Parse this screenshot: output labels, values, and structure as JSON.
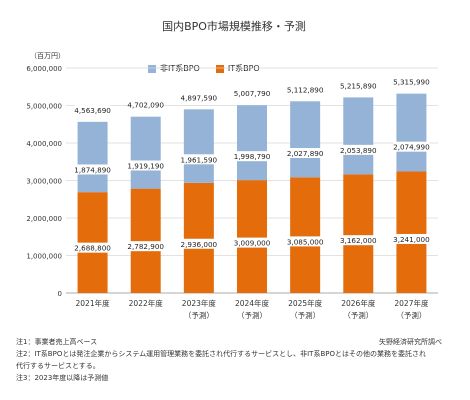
{
  "title": "国内BPO市場規模推移・予測",
  "y_unit": "（百万円）",
  "notes": [
    "注1：事業者売上高ベース",
    "注2：IT系BPOとは発注企業からシステム運用管理業務を委託され代行するサービスとし、非IT系BPOとはその他の業務を委託され",
    "代行するサービスとする。",
    "注3：2023年度以降は予測値"
  ],
  "source": "矢野経済研究所調べ",
  "chart_data": {
    "type": "bar",
    "stacked": true,
    "title": "国内BPO市場規模推移・予測",
    "ylabel": "（百万円）",
    "ylim": [
      0,
      6000000
    ],
    "yticks": [
      "0",
      "1,000,000",
      "2,000,000",
      "3,000,000",
      "4,000,000",
      "5,000,000",
      "6,000,000"
    ],
    "ytick_values": [
      0,
      1000000,
      2000000,
      3000000,
      4000000,
      5000000,
      6000000
    ],
    "categories": [
      "2021年度",
      "2022年度",
      "2023年度",
      "2024年度",
      "2025年度",
      "2026年度",
      "2027年度"
    ],
    "category_sublabels": [
      "",
      "",
      "（予測）",
      "（予測）",
      "（予測）",
      "（予測）",
      "（予測）"
    ],
    "series": [
      {
        "name": "IT系BPO",
        "color": "#e46c0a",
        "values": [
          2688800,
          2782900,
          2936000,
          3009000,
          3085000,
          3162000,
          3241000
        ],
        "labels": [
          "2,688,800",
          "2,782,900",
          "2,936,000",
          "3,009,000",
          "3,085,000",
          "3,162,000",
          "3,241,000"
        ]
      },
      {
        "name": "非IT系BPO",
        "color": "#95b3d7",
        "values": [
          1874890,
          1919190,
          1961590,
          1998790,
          2027890,
          2053890,
          2074990
        ],
        "labels": [
          "1,874,890",
          "1,919,190",
          "1,961,590",
          "1,998,790",
          "2,027,890",
          "2,053,890",
          "2,074,990"
        ]
      }
    ],
    "totals": [
      4563690,
      4702090,
      4897590,
      5007790,
      5112890,
      5215890,
      5315990
    ],
    "total_labels": [
      "4,563,690",
      "4,702,090",
      "4,897,590",
      "5,007,790",
      "5,112,890",
      "5,215,890",
      "5,315,990"
    ],
    "legend": [
      "非IT系BPO",
      "IT系BPO"
    ],
    "legend_placement": "top-center",
    "grid": true
  }
}
